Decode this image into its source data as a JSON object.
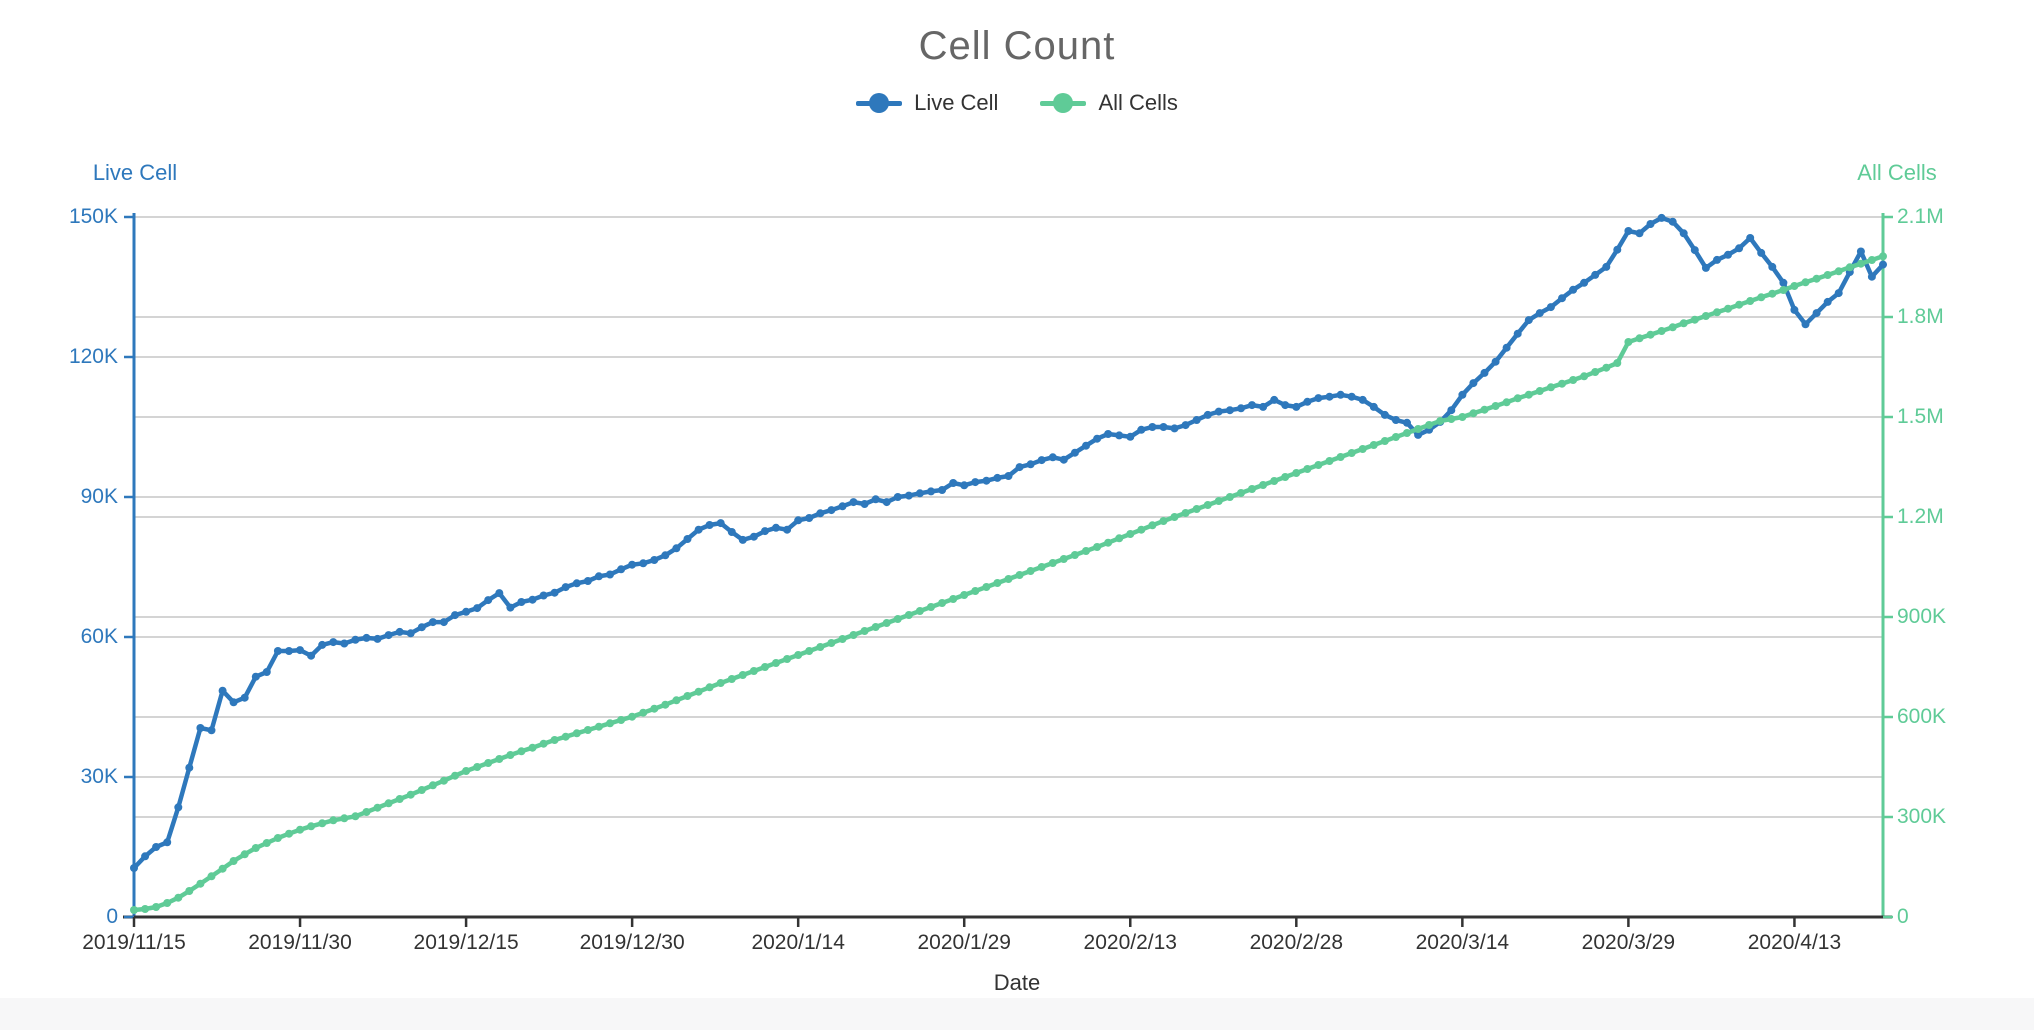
{
  "page": {
    "card_background": "#ffffff",
    "page_background": "#f7f7f8"
  },
  "chart_data": {
    "type": "line",
    "title": "Cell Count",
    "xlabel": "Date",
    "grid": true,
    "legend_position": "top",
    "legend": [
      {
        "label": "Live Cell",
        "color": "#2e78bc"
      },
      {
        "label": "All Cells",
        "color": "#5fcb97"
      }
    ],
    "left_axis": {
      "name": "Live Cell",
      "color": "#2e78bc",
      "min": 0,
      "max": 150000,
      "ticks": [
        "150K",
        "120K",
        "90K",
        "60K",
        "30K",
        "0"
      ]
    },
    "right_axis": {
      "name": "All Cells",
      "color": "#5fcb97",
      "min": 0,
      "max": 2100000,
      "ticks": [
        "2.1M",
        "1.8M",
        "1.5M",
        "1.2M",
        "900K",
        "600K",
        "300K",
        "0"
      ]
    },
    "x_tick_labels": [
      "2019/11/15",
      "2019/11/30",
      "2019/12/15",
      "2019/12/30",
      "2020/1/14",
      "2020/1/29",
      "2020/2/13",
      "2020/2/28",
      "2020/3/14",
      "2020/3/29",
      "2020/4/13"
    ],
    "dates": [
      "2019/11/15",
      "2019/11/16",
      "2019/11/17",
      "2019/11/18",
      "2019/11/19",
      "2019/11/20",
      "2019/11/21",
      "2019/11/22",
      "2019/11/23",
      "2019/11/24",
      "2019/11/25",
      "2019/11/26",
      "2019/11/27",
      "2019/11/28",
      "2019/11/29",
      "2019/11/30",
      "2019/12/1",
      "2019/12/2",
      "2019/12/3",
      "2019/12/4",
      "2019/12/5",
      "2019/12/6",
      "2019/12/7",
      "2019/12/8",
      "2019/12/9",
      "2019/12/10",
      "2019/12/11",
      "2019/12/12",
      "2019/12/13",
      "2019/12/14",
      "2019/12/15",
      "2019/12/16",
      "2019/12/17",
      "2019/12/18",
      "2019/12/19",
      "2019/12/20",
      "2019/12/21",
      "2019/12/22",
      "2019/12/23",
      "2019/12/24",
      "2019/12/25",
      "2019/12/26",
      "2019/12/27",
      "2019/12/28",
      "2019/12/29",
      "2019/12/30",
      "2019/12/31",
      "2020/1/1",
      "2020/1/2",
      "2020/1/3",
      "2020/1/4",
      "2020/1/5",
      "2020/1/6",
      "2020/1/7",
      "2020/1/8",
      "2020/1/9",
      "2020/1/10",
      "2020/1/11",
      "2020/1/12",
      "2020/1/13",
      "2020/1/14",
      "2020/1/15",
      "2020/1/16",
      "2020/1/17",
      "2020/1/18",
      "2020/1/19",
      "2020/1/20",
      "2020/1/21",
      "2020/1/22",
      "2020/1/23",
      "2020/1/24",
      "2020/1/25",
      "2020/1/26",
      "2020/1/27",
      "2020/1/28",
      "2020/1/29",
      "2020/1/30",
      "2020/1/31",
      "2020/2/1",
      "2020/2/2",
      "2020/2/3",
      "2020/2/4",
      "2020/2/5",
      "2020/2/6",
      "2020/2/7",
      "2020/2/8",
      "2020/2/9",
      "2020/2/10",
      "2020/2/11",
      "2020/2/12",
      "2020/2/13",
      "2020/2/14",
      "2020/2/15",
      "2020/2/16",
      "2020/2/17",
      "2020/2/18",
      "2020/2/19",
      "2020/2/20",
      "2020/2/21",
      "2020/2/22",
      "2020/2/23",
      "2020/2/24",
      "2020/2/25",
      "2020/2/26",
      "2020/2/27",
      "2020/2/28",
      "2020/2/29",
      "2020/3/1",
      "2020/3/2",
      "2020/3/3",
      "2020/3/4",
      "2020/3/5",
      "2020/3/6",
      "2020/3/7",
      "2020/3/8",
      "2020/3/9",
      "2020/3/10",
      "2020/3/11",
      "2020/3/12",
      "2020/3/13",
      "2020/3/14",
      "2020/3/15",
      "2020/3/16",
      "2020/3/17",
      "2020/3/18",
      "2020/3/19",
      "2020/3/20",
      "2020/3/21",
      "2020/3/22",
      "2020/3/23",
      "2020/3/24",
      "2020/3/25",
      "2020/3/26",
      "2020/3/27",
      "2020/3/28",
      "2020/3/29",
      "2020/3/30",
      "2020/3/31",
      "2020/4/1",
      "2020/4/2",
      "2020/4/3",
      "2020/4/4",
      "2020/4/5",
      "2020/4/6",
      "2020/4/7",
      "2020/4/8",
      "2020/4/9",
      "2020/4/10",
      "2020/4/11",
      "2020/4/12",
      "2020/4/13",
      "2020/4/14",
      "2020/4/15",
      "2020/4/16",
      "2020/4/17",
      "2020/4/18",
      "2020/4/19",
      "2020/4/20",
      "2020/4/21"
    ],
    "series": [
      {
        "name": "Live Cell",
        "axis": "left",
        "color": "#2e78bc",
        "values": [
          10500,
          13000,
          15000,
          16000,
          23500,
          32000,
          40500,
          40000,
          48500,
          46000,
          47000,
          51500,
          52500,
          57000,
          57000,
          57200,
          56000,
          58300,
          58900,
          58600,
          59400,
          59800,
          59600,
          60400,
          61100,
          60800,
          62100,
          63200,
          63200,
          64700,
          65400,
          66200,
          67900,
          69400,
          66300,
          67500,
          68000,
          68900,
          69500,
          70700,
          71500,
          72000,
          73000,
          73400,
          74500,
          75500,
          75800,
          76500,
          77500,
          79000,
          81000,
          83000,
          84000,
          84400,
          82500,
          80800,
          81500,
          82700,
          83400,
          83000,
          85000,
          85500,
          86500,
          87200,
          88000,
          88900,
          88500,
          89500,
          88900,
          90000,
          90300,
          90800,
          91200,
          91500,
          93000,
          92500,
          93200,
          93500,
          94100,
          94500,
          96400,
          97000,
          97900,
          98500,
          98000,
          99500,
          101000,
          102500,
          103500,
          103200,
          102900,
          104400,
          105000,
          105000,
          104700,
          105400,
          106500,
          107600,
          108300,
          108600,
          109000,
          109700,
          109300,
          110800,
          109700,
          109300,
          110400,
          111200,
          111500,
          111900,
          111500,
          110800,
          109300,
          107600,
          106500,
          105900,
          103300,
          104400,
          106100,
          108600,
          111900,
          114400,
          116600,
          119000,
          122000,
          125000,
          127900,
          129400,
          130700,
          132600,
          134400,
          135900,
          137600,
          139300,
          143000,
          147000,
          146500,
          148500,
          149800,
          149000,
          146500,
          142900,
          139100,
          140800,
          141900,
          143300,
          145500,
          142300,
          139300,
          135900,
          130100,
          127000,
          129400,
          131800,
          133700,
          138200,
          142600,
          137200,
          139800
        ]
      },
      {
        "name": "All Cells",
        "axis": "right",
        "color": "#5fcb97",
        "values": [
          21000,
          24000,
          30000,
          42000,
          58000,
          78000,
          100000,
          122000,
          145000,
          168000,
          188000,
          207000,
          222000,
          237000,
          250000,
          262000,
          272000,
          281000,
          290000,
          296000,
          302000,
          315000,
          328000,
          341000,
          354000,
          367000,
          381000,
          395000,
          409000,
          424000,
          438000,
          450000,
          462000,
          474000,
          486000,
          497000,
          508000,
          520000,
          531000,
          541000,
          551000,
          561000,
          571000,
          581000,
          591000,
          601000,
          613000,
          625000,
          637000,
          650000,
          663000,
          676000,
          689000,
          702000,
          714000,
          726000,
          738000,
          750000,
          762000,
          774000,
          786000,
          798000,
          810000,
          822000,
          834000,
          846000,
          858000,
          870000,
          882000,
          894000,
          906000,
          918000,
          930000,
          942000,
          954000,
          966000,
          978000,
          990000,
          1002000,
          1014000,
          1026000,
          1038000,
          1050000,
          1062000,
          1074000,
          1086000,
          1098000,
          1110000,
          1123000,
          1136000,
          1149000,
          1162000,
          1175000,
          1188000,
          1200000,
          1212000,
          1224000,
          1236000,
          1248000,
          1260000,
          1272000,
          1284000,
          1296000,
          1308000,
          1320000,
          1332000,
          1344000,
          1356000,
          1368000,
          1380000,
          1392000,
          1404000,
          1416000,
          1428000,
          1440000,
          1452000,
          1464000,
          1476000,
          1488000,
          1494000,
          1500000,
          1511000,
          1522000,
          1533000,
          1544000,
          1556000,
          1567000,
          1578000,
          1589000,
          1600000,
          1611000,
          1622000,
          1635000,
          1648000,
          1662000,
          1725000,
          1736000,
          1747000,
          1758000,
          1769000,
          1781000,
          1792000,
          1803000,
          1814000,
          1825000,
          1837000,
          1848000,
          1859000,
          1870000,
          1881000,
          1893000,
          1904000,
          1915000,
          1926000,
          1937000,
          1949000,
          1960000,
          1971000,
          1982000
        ]
      }
    ]
  }
}
